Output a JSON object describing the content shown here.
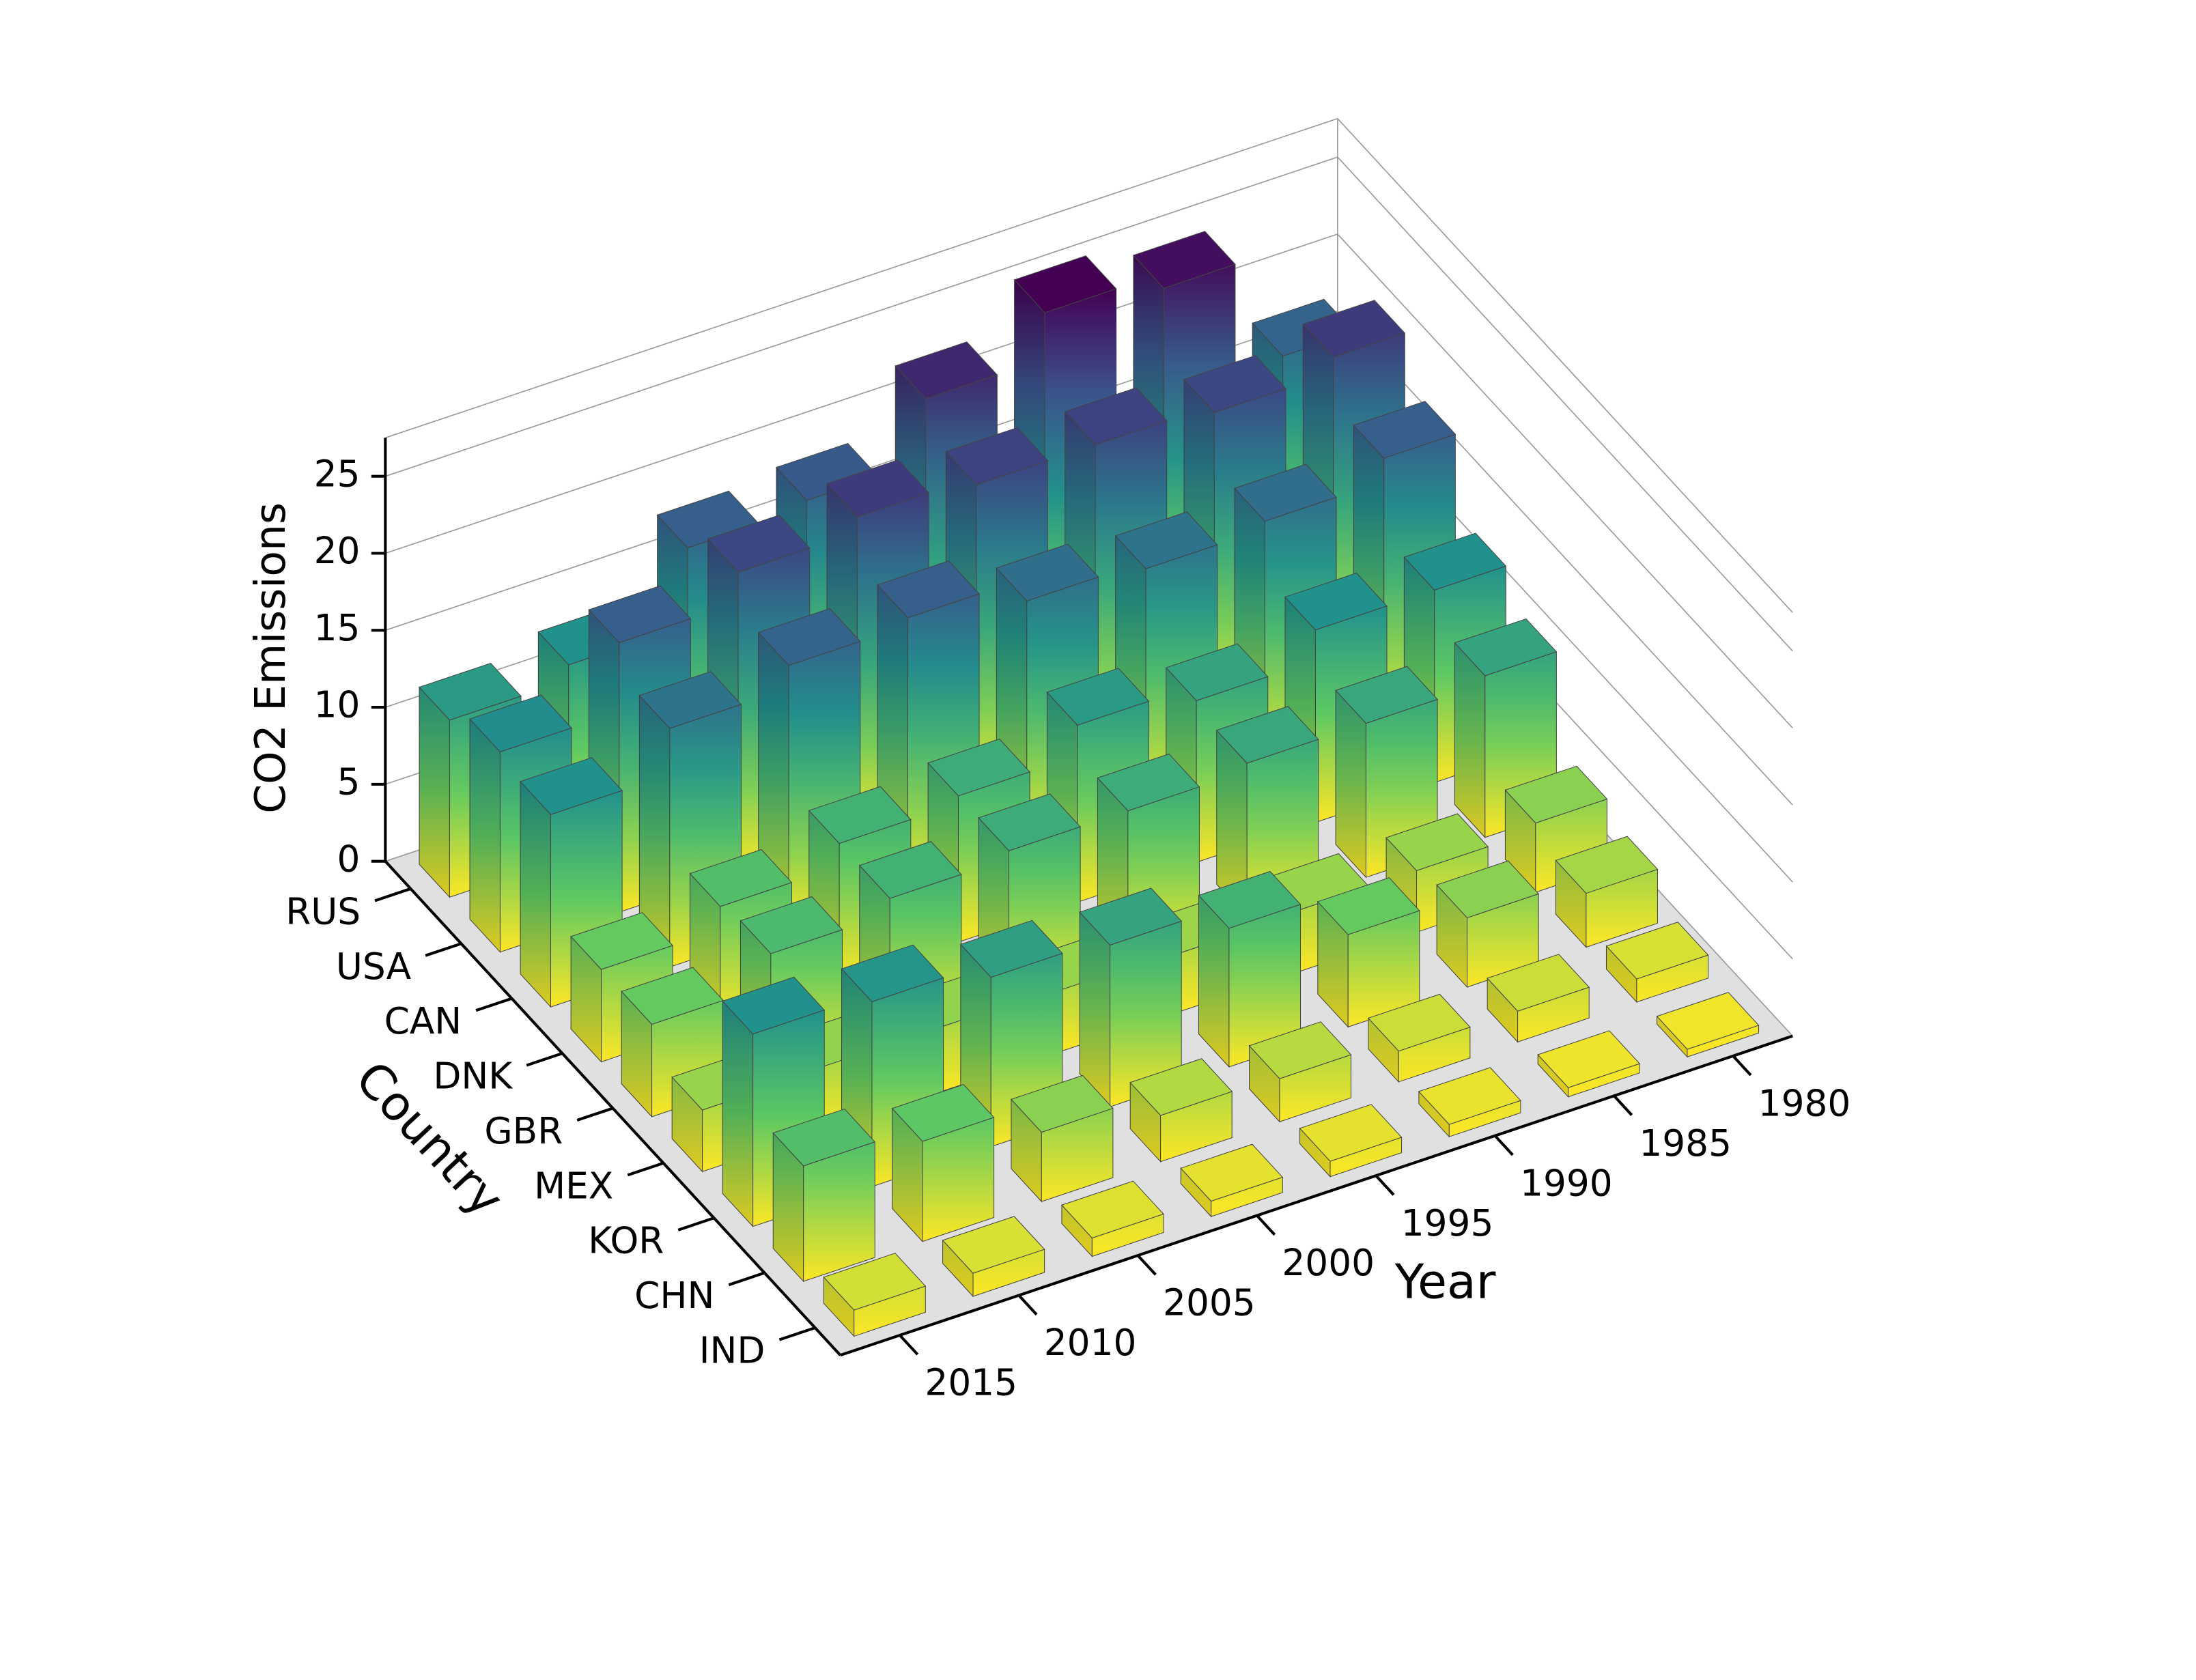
{
  "chart_data": {
    "type": "bar3d",
    "zlabel": "CO2 Emissions",
    "ylabel": "Country",
    "xlabel": "Year",
    "categories": [
      "RUS",
      "USA",
      "CAN",
      "DNK",
      "GBR",
      "MEX",
      "KOR",
      "CHN",
      "IND"
    ],
    "x": [
      1980,
      1985,
      1990,
      1995,
      2000,
      2005,
      2010,
      2015
    ],
    "values": [
      [
        17.0,
        24.0,
        25.0,
        22.0,
        18.0,
        17.5,
        12.5,
        11.5
      ],
      [
        20.5,
        19.5,
        20.0,
        20.0,
        20.5,
        19.5,
        17.5,
        13.0
      ],
      [
        17.5,
        16.0,
        15.5,
        16.0,
        17.5,
        17.0,
        15.5,
        12.5
      ],
      [
        12.5,
        12.5,
        10.5,
        11.5,
        9.5,
        9.0,
        7.5,
        6.0
      ],
      [
        10.5,
        10.0,
        10.0,
        9.5,
        9.5,
        9.0,
        8.0,
        6.0
      ],
      [
        4.5,
        4.0,
        4.0,
        3.8,
        4.0,
        4.2,
        4.2,
        4.0
      ],
      [
        3.5,
        4.5,
        6.0,
        9.0,
        10.5,
        11.0,
        12.0,
        12.5
      ],
      [
        1.5,
        2.0,
        2.0,
        2.8,
        3.0,
        4.5,
        6.5,
        7.5
      ],
      [
        0.5,
        0.6,
        0.8,
        1.0,
        1.0,
        1.2,
        1.5,
        1.7
      ]
    ],
    "zlim": [
      0,
      27.5
    ],
    "zticks": [
      0,
      5,
      10,
      15,
      20,
      25
    ],
    "grid": true,
    "colormap": [
      "#fde725",
      "#5ec962",
      "#21918c",
      "#3b528b",
      "#440154"
    ]
  }
}
